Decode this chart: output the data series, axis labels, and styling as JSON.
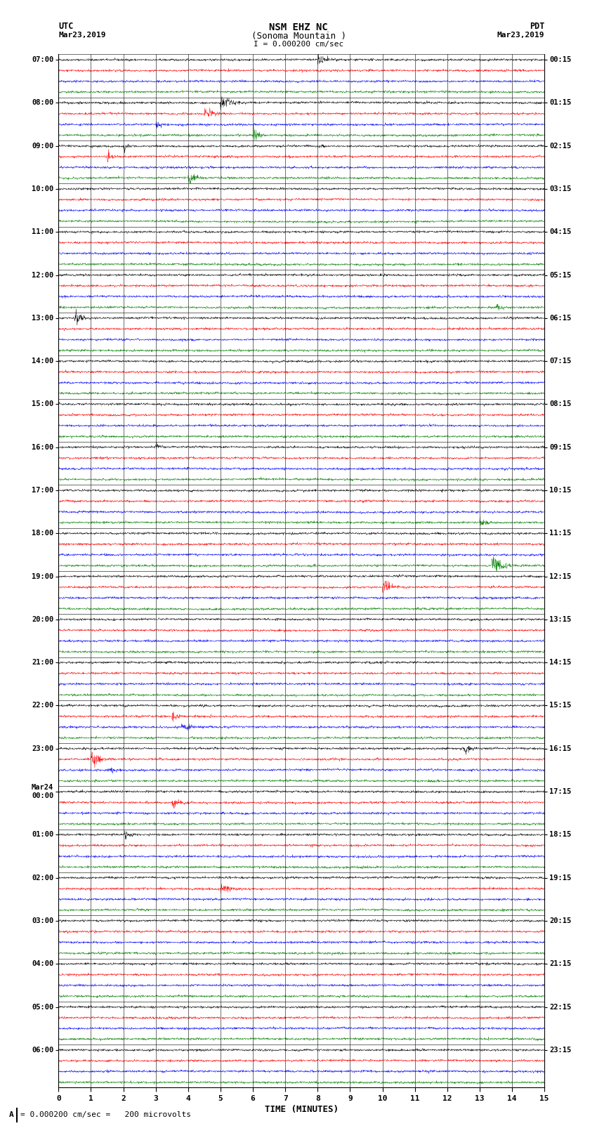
{
  "title_line1": "NSM EHZ NC",
  "title_line2": "(Sonoma Mountain )",
  "title_line3": "I = 0.000200 cm/sec",
  "label_utc": "UTC",
  "label_pdt": "PDT",
  "label_date_left": "Mar23,2019",
  "label_date_right": "Mar23,2019",
  "xlabel": "TIME (MINUTES)",
  "footer_text": "= 0.000200 cm/sec =   200 microvolts",
  "xlim": [
    0,
    15
  ],
  "xticks": [
    0,
    1,
    2,
    3,
    4,
    5,
    6,
    7,
    8,
    9,
    10,
    11,
    12,
    13,
    14,
    15
  ],
  "background_color": "#ffffff",
  "trace_colors": [
    "black",
    "red",
    "blue",
    "green"
  ],
  "num_hours": 24,
  "traces_per_hour": 4,
  "figsize": [
    8.5,
    16.13
  ],
  "dpi": 100,
  "utc_labels": [
    "07:00",
    "08:00",
    "09:00",
    "10:00",
    "11:00",
    "12:00",
    "13:00",
    "14:00",
    "15:00",
    "16:00",
    "17:00",
    "18:00",
    "19:00",
    "20:00",
    "21:00",
    "22:00",
    "23:00",
    "Mar24\n00:00",
    "01:00",
    "02:00",
    "03:00",
    "04:00",
    "05:00",
    "06:00"
  ],
  "pdt_labels": [
    "00:15",
    "01:15",
    "02:15",
    "03:15",
    "04:15",
    "05:15",
    "06:15",
    "07:15",
    "08:15",
    "09:15",
    "10:15",
    "11:15",
    "12:15",
    "13:15",
    "14:15",
    "15:15",
    "16:15",
    "17:15",
    "18:15",
    "19:15",
    "20:15",
    "21:15",
    "22:15",
    "23:15"
  ]
}
